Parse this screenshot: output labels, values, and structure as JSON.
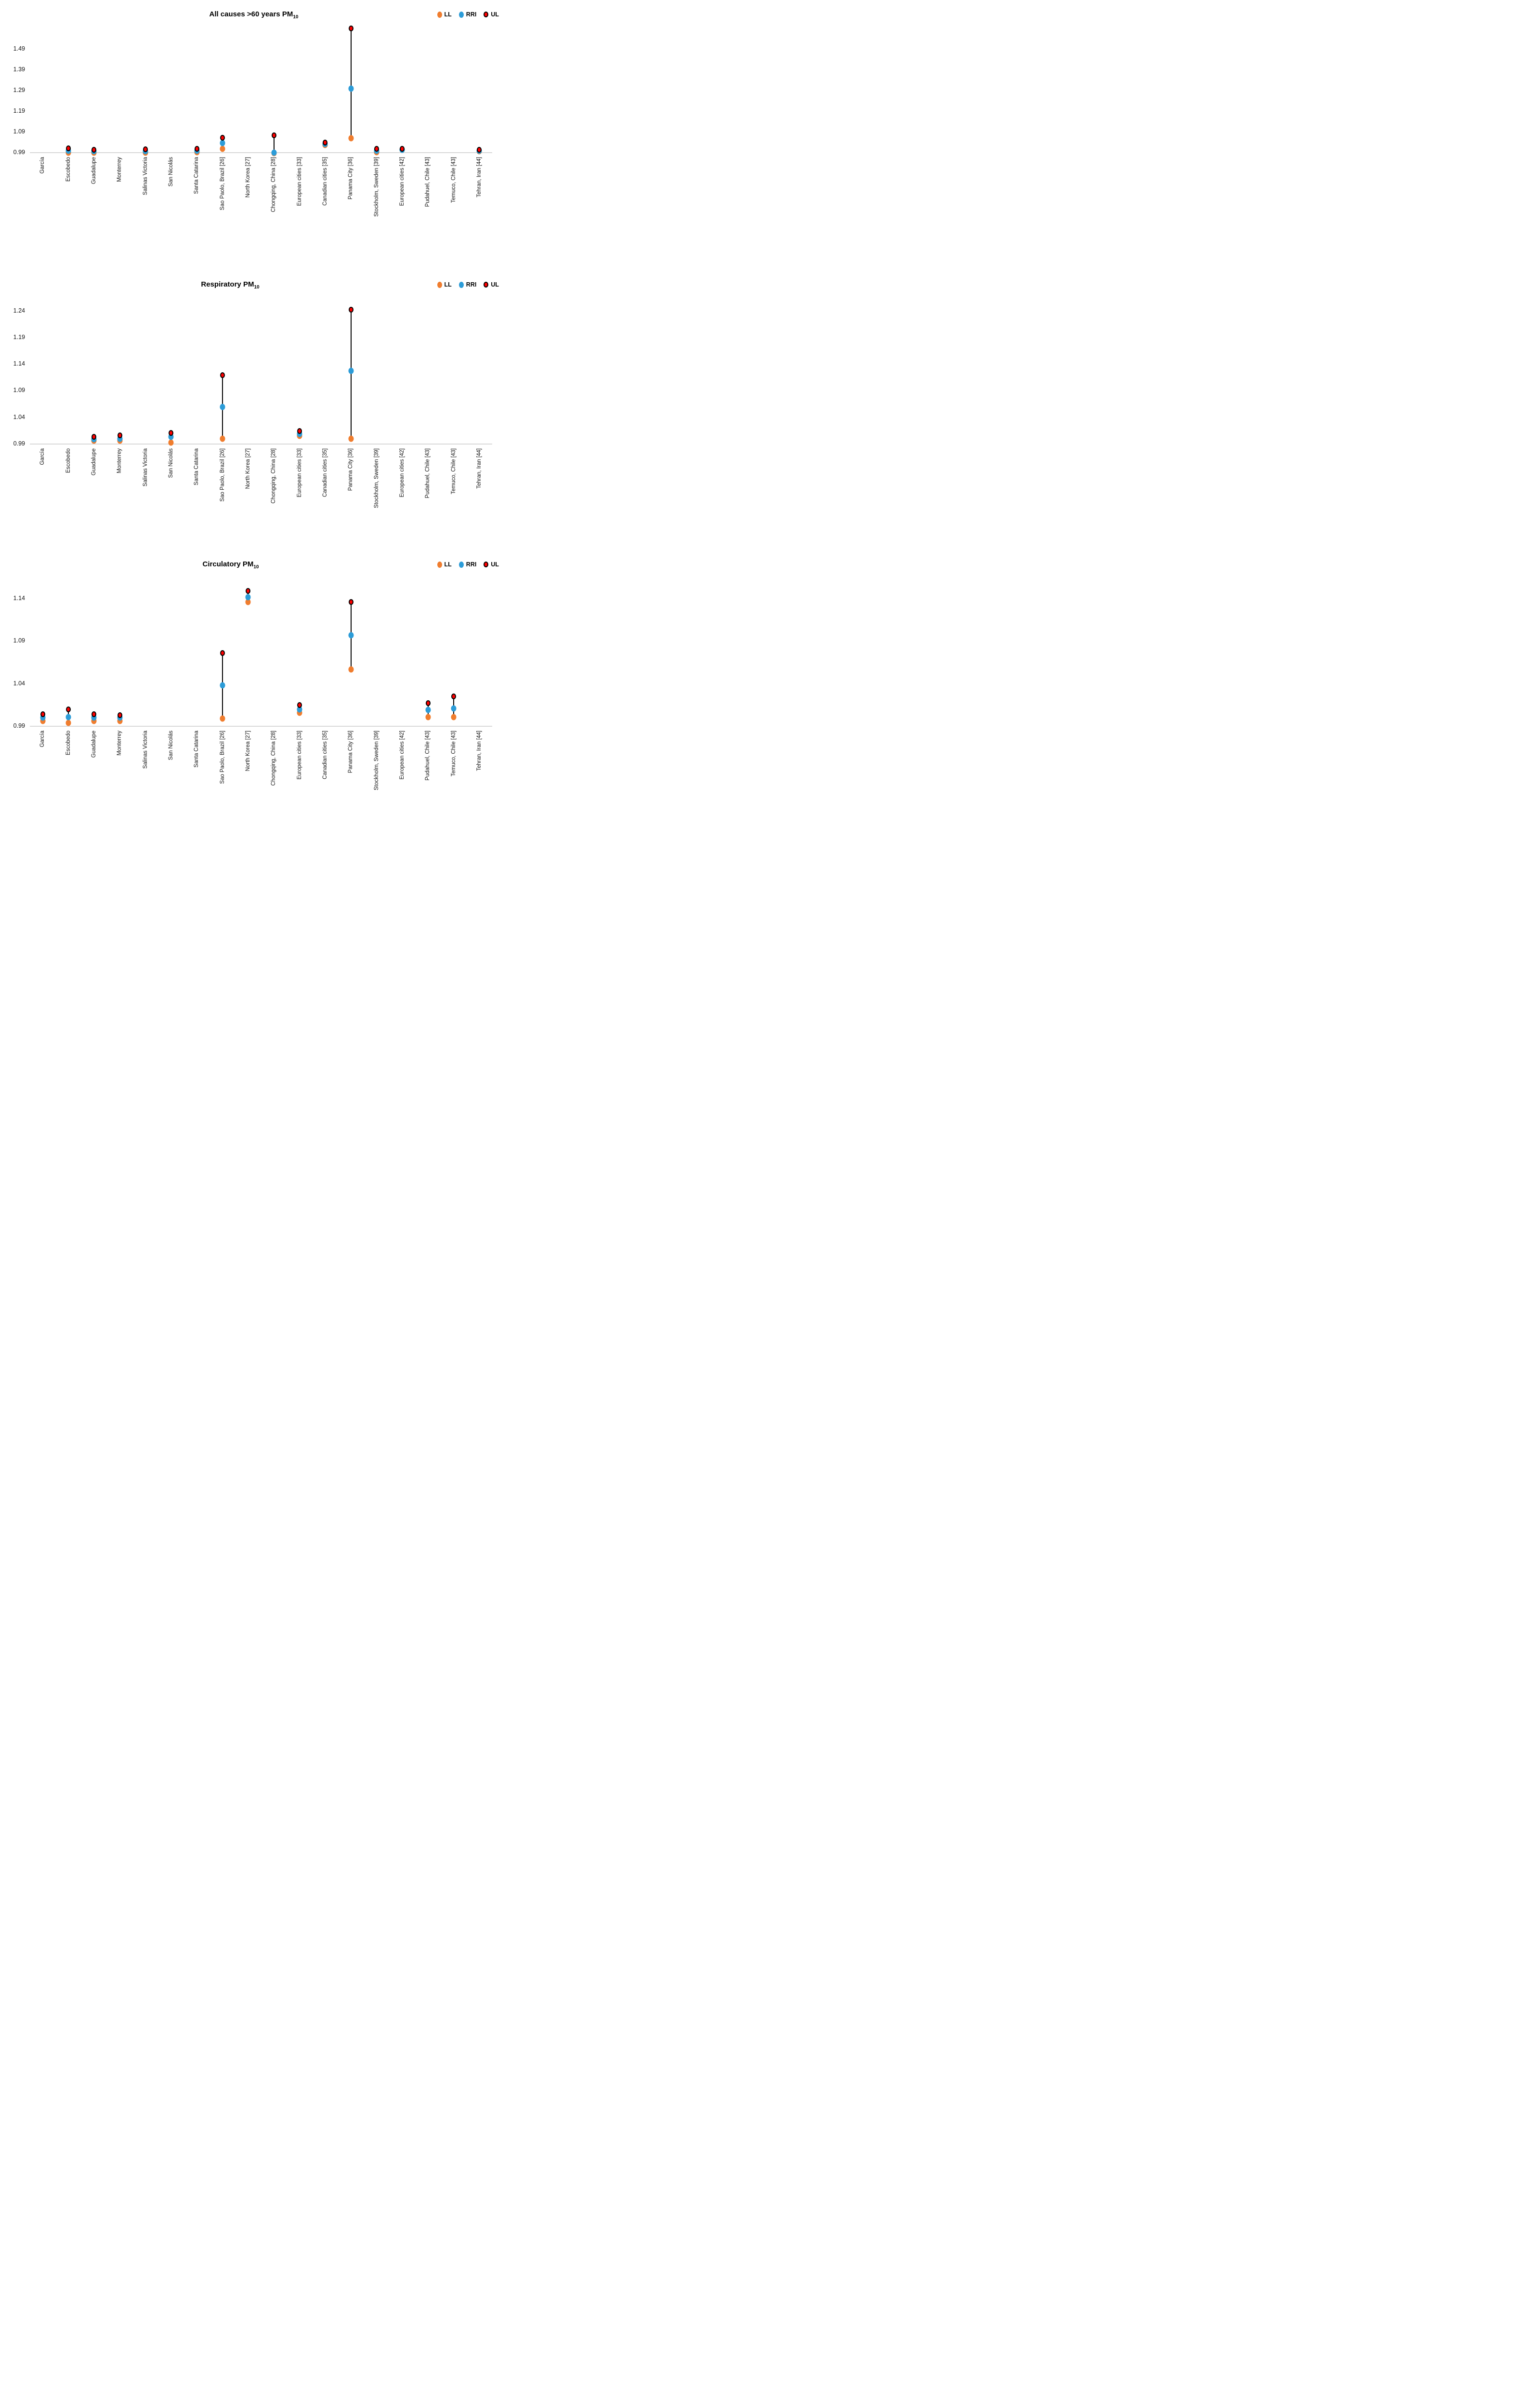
{
  "legend": {
    "items": [
      {
        "id": "ll",
        "label": "LL",
        "color": "#F07D2E",
        "ring": false
      },
      {
        "id": "rri",
        "label": "RRI",
        "color": "#2C9CD8",
        "ring": false
      },
      {
        "id": "ul",
        "label": "UL",
        "color": "#FF0000",
        "ring": true
      }
    ]
  },
  "categories": [
    "García",
    "Escobedo",
    "Guadalupe",
    "Monterrey",
    "Salinas Victoria",
    "San Nicolás",
    "Santa Catarina",
    "Sao Paolo, Brazil [26]",
    "North Korea [27]",
    "Chongqing, China [28]",
    "European cities [33]",
    "Canadian cities [35]",
    "Panama City [36]",
    "Stockholm, Sweden [39]",
    "European cities [42]",
    "Pudahuel, Chile [43]",
    "Temuco, Chile [43]",
    "Tehran, Iran [44]"
  ],
  "chart_data": [
    {
      "type": "scatter",
      "title_main": "All causes >60 years PM",
      "title_sub": "10",
      "legend_position": "top-right",
      "grid": false,
      "y_ticks": [
        "0.99",
        "1.09",
        "1.19",
        "1.29",
        "1.39",
        "1.49"
      ],
      "ylim": [
        0.96,
        1.62
      ],
      "series_names": [
        "LL",
        "RRI",
        "UL"
      ],
      "values": [
        null,
        [
          0.99,
          0.999,
          1.01
        ],
        [
          0.991,
          0.997,
          1.005
        ],
        null,
        [
          0.991,
          0.998,
          1.006
        ],
        null,
        [
          0.992,
          1.0,
          1.009
        ],
        [
          1.008,
          1.036,
          1.062
        ],
        null,
        [
          0.988,
          0.99,
          1.073
        ],
        null,
        [
          1.027,
          1.031,
          1.038
        ],
        [
          1.06,
          1.3,
          1.59
        ],
        [
          0.992,
          0.999,
          1.008
        ],
        [
          1.003,
          1.005,
          1.008
        ],
        null,
        null,
        [
          0.997,
          1.0,
          1.005
        ]
      ]
    },
    {
      "type": "scatter",
      "title_main": "Respiratory PM",
      "title_sub": "10",
      "legend_position": "top-right",
      "grid": false,
      "y_ticks": [
        "0.99",
        "1.04",
        "1.09",
        "1.14",
        "1.19",
        "1.24"
      ],
      "ylim": [
        0.97,
        1.27
      ],
      "series_names": [
        "LL",
        "RRI",
        "UL"
      ],
      "values": [
        null,
        null,
        [
          0.996,
          0.999,
          1.004
        ],
        [
          0.996,
          1.0,
          1.006
        ],
        null,
        [
          0.993,
          1.004,
          1.011
        ],
        null,
        [
          1.0,
          1.06,
          1.119
        ],
        null,
        null,
        [
          1.005,
          1.009,
          1.014
        ],
        null,
        [
          1.0,
          1.127,
          1.242
        ],
        null,
        null,
        null,
        null,
        null
      ]
    },
    {
      "type": "scatter",
      "title_main": "Circulatory PM",
      "title_sub": "10",
      "legend_position": "top-right",
      "grid": false,
      "y_ticks": [
        "0.99",
        "1.04",
        "1.09",
        "1.14"
      ],
      "ylim": [
        0.97,
        1.17
      ],
      "series_names": [
        "LL",
        "RRI",
        "UL"
      ],
      "values": [
        [
          0.996,
          1.0,
          1.004
        ],
        [
          0.994,
          1.001,
          1.01
        ],
        [
          0.996,
          1.0,
          1.004
        ],
        [
          0.996,
          1.0,
          1.003
        ],
        null,
        null,
        null,
        [
          0.999,
          1.038,
          1.076
        ],
        [
          1.136,
          1.142,
          1.149
        ],
        null,
        [
          1.006,
          1.01,
          1.015
        ],
        null,
        [
          1.057,
          1.097,
          1.136
        ],
        null,
        null,
        [
          1.001,
          1.009,
          1.017
        ],
        [
          1.001,
          1.011,
          1.025
        ],
        null
      ]
    }
  ]
}
